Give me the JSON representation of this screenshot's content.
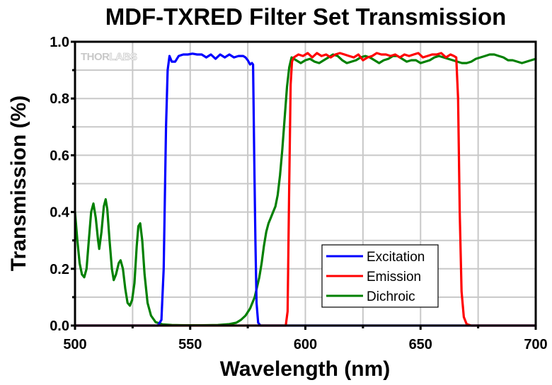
{
  "chart_data": {
    "type": "line",
    "title": "MDF-TXRED Filter Set Transmission",
    "xlabel": "Wavelength (nm)",
    "ylabel": "Transmission (%)",
    "xlim": [
      500,
      700
    ],
    "ylim": [
      0,
      1.0
    ],
    "xticks": [
      "500",
      "550",
      "600",
      "650",
      "700"
    ],
    "xtick_values": [
      500,
      550,
      600,
      650,
      700
    ],
    "yticks": [
      "0.0",
      "0.2",
      "0.4",
      "0.6",
      "0.8",
      "1.0"
    ],
    "ytick_values": [
      0,
      0.2,
      0.4,
      0.6,
      0.8,
      1.0
    ],
    "grid": true,
    "watermark": {
      "text_dark": "THOR",
      "text_light": "LABS"
    },
    "legend": {
      "placement": "lower-center-right"
    },
    "series": [
      {
        "name": "Excitation",
        "color": "#0000ff",
        "x": [
          500,
          536,
          537.5,
          538.5,
          539.5,
          540.2,
          541,
          542,
          543.5,
          545,
          547,
          549,
          551,
          553,
          555,
          557,
          559,
          561,
          563,
          565,
          567,
          569,
          571,
          573,
          574,
          575,
          576,
          576.8,
          577.3,
          577.8,
          578.3,
          578.8,
          579.5,
          580.5,
          700
        ],
        "y": [
          0,
          0,
          0.02,
          0.2,
          0.7,
          0.9,
          0.95,
          0.93,
          0.93,
          0.95,
          0.955,
          0.955,
          0.958,
          0.955,
          0.955,
          0.945,
          0.955,
          0.94,
          0.955,
          0.945,
          0.955,
          0.945,
          0.95,
          0.95,
          0.945,
          0.935,
          0.92,
          0.925,
          0.92,
          0.6,
          0.3,
          0.08,
          0.01,
          0,
          0
        ]
      },
      {
        "name": "Emission",
        "color": "#ff0000",
        "x": [
          500,
          591.5,
          592.3,
          593,
          593.6,
          594.2,
          595,
          597,
          599,
          601,
          603,
          605,
          607,
          609,
          611,
          613,
          615,
          617,
          619,
          621,
          623,
          625,
          627,
          629,
          631,
          633,
          635,
          637,
          639,
          641,
          643,
          645,
          647,
          649,
          651,
          653,
          655,
          657,
          659,
          661,
          663,
          664.5,
          665.5,
          666.3,
          667,
          667.8,
          668.8,
          670,
          672,
          700
        ],
        "y": [
          0,
          0,
          0.05,
          0.5,
          0.85,
          0.93,
          0.945,
          0.955,
          0.95,
          0.96,
          0.945,
          0.96,
          0.95,
          0.955,
          0.945,
          0.955,
          0.96,
          0.955,
          0.95,
          0.945,
          0.955,
          0.935,
          0.945,
          0.95,
          0.96,
          0.955,
          0.955,
          0.95,
          0.955,
          0.945,
          0.955,
          0.95,
          0.955,
          0.96,
          0.945,
          0.95,
          0.955,
          0.955,
          0.96,
          0.945,
          0.955,
          0.95,
          0.945,
          0.8,
          0.4,
          0.12,
          0.03,
          0.005,
          0,
          0
        ]
      },
      {
        "name": "Dichroic",
        "color": "#008000",
        "x": [
          500,
          501,
          502,
          503,
          504,
          505,
          506,
          507,
          508,
          509,
          510,
          510.5,
          511.5,
          512.5,
          513.3,
          514,
          515,
          516,
          516.8,
          517.8,
          519,
          519.8,
          520.8,
          521.8,
          522.8,
          523.8,
          524.8,
          525.8,
          526.8,
          527.5,
          528.3,
          529.2,
          530.2,
          531.5,
          533,
          535,
          538,
          542,
          548,
          555,
          562,
          567,
          570,
          572,
          574,
          576,
          578,
          580,
          581,
          582,
          583,
          584,
          585,
          586,
          587,
          588,
          589,
          590,
          591,
          592,
          593,
          594,
          596,
          598,
          600,
          602,
          604,
          606,
          608,
          610,
          612,
          614,
          616,
          618,
          620,
          622,
          624,
          626,
          628,
          630,
          632,
          634,
          636,
          638,
          640,
          642,
          644,
          646,
          648,
          650,
          652,
          654,
          656,
          658,
          660,
          662,
          664,
          666,
          668,
          670,
          672,
          674,
          676,
          678,
          680,
          682,
          684,
          686,
          688,
          690,
          692,
          694,
          696,
          698,
          700
        ],
        "y": [
          0.4,
          0.3,
          0.22,
          0.18,
          0.17,
          0.2,
          0.3,
          0.4,
          0.43,
          0.38,
          0.3,
          0.27,
          0.33,
          0.42,
          0.445,
          0.41,
          0.3,
          0.2,
          0.16,
          0.18,
          0.22,
          0.23,
          0.2,
          0.13,
          0.08,
          0.07,
          0.09,
          0.15,
          0.28,
          0.35,
          0.36,
          0.3,
          0.18,
          0.08,
          0.035,
          0.012,
          0.004,
          0.002,
          0.001,
          0.001,
          0.002,
          0.005,
          0.01,
          0.02,
          0.035,
          0.06,
          0.1,
          0.17,
          0.22,
          0.28,
          0.33,
          0.36,
          0.38,
          0.4,
          0.42,
          0.46,
          0.53,
          0.62,
          0.73,
          0.84,
          0.91,
          0.945,
          0.935,
          0.925,
          0.935,
          0.94,
          0.93,
          0.925,
          0.935,
          0.945,
          0.955,
          0.95,
          0.935,
          0.925,
          0.93,
          0.935,
          0.945,
          0.95,
          0.945,
          0.935,
          0.925,
          0.935,
          0.94,
          0.95,
          0.95,
          0.94,
          0.93,
          0.935,
          0.935,
          0.925,
          0.93,
          0.935,
          0.945,
          0.95,
          0.945,
          0.94,
          0.935,
          0.93,
          0.925,
          0.925,
          0.93,
          0.94,
          0.945,
          0.95,
          0.955,
          0.955,
          0.95,
          0.945,
          0.935,
          0.935,
          0.93,
          0.925,
          0.93,
          0.935,
          0.94
        ]
      }
    ]
  }
}
